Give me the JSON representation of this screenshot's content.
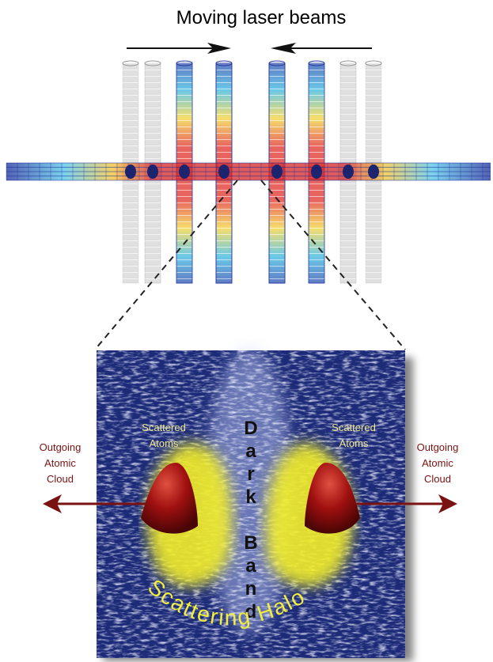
{
  "title": "Moving laser beams",
  "panel": {
    "scattered_left": [
      "Scattered",
      "Atoms"
    ],
    "scattered_right": [
      "Scattered",
      "Atoms"
    ],
    "outgoing_left": [
      "Outgoing",
      "Atomic",
      "Cloud"
    ],
    "outgoing_right": [
      "Outgoing",
      "Atomic",
      "Cloud"
    ],
    "dark_band": "Dark Band",
    "halo": "Scattering Halo"
  }
}
